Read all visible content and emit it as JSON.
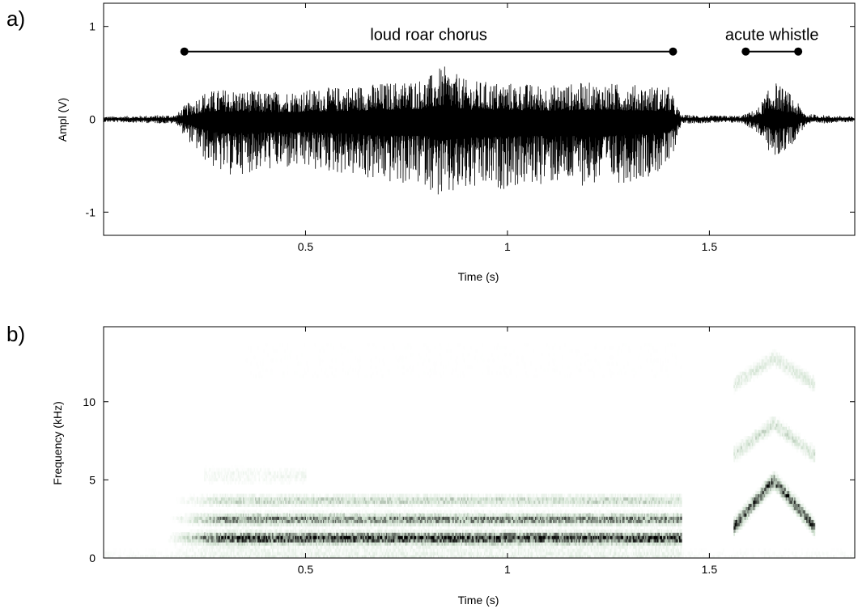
{
  "chart_data": [
    {
      "panel_label": "a)",
      "type": "line",
      "xlabel": "Time (s)",
      "ylabel": "Ampl (V)",
      "xlim": [
        0,
        1.86
      ],
      "ylim": [
        -1.25,
        1.25
      ],
      "xticks": [
        0.5,
        1,
        1.5
      ],
      "xtick_labels": [
        "0.5",
        "1",
        "1.5"
      ],
      "yticks": [
        -1,
        0,
        1
      ],
      "ytick_labels": [
        "-1",
        "0",
        "1"
      ],
      "grid": false,
      "envelope": {
        "time": [
          0,
          0.1,
          0.18,
          0.2,
          0.25,
          0.3,
          0.4,
          0.5,
          0.6,
          0.7,
          0.8,
          0.84,
          0.9,
          1.0,
          1.1,
          1.2,
          1.3,
          1.4,
          1.43,
          1.5,
          1.58,
          1.62,
          1.66,
          1.7,
          1.74,
          1.8,
          1.86
        ],
        "max": [
          0.03,
          0.04,
          0.05,
          0.15,
          0.3,
          0.33,
          0.3,
          0.32,
          0.36,
          0.4,
          0.45,
          0.58,
          0.42,
          0.4,
          0.37,
          0.4,
          0.38,
          0.35,
          0.05,
          0.04,
          0.04,
          0.12,
          0.42,
          0.28,
          0.06,
          0.04,
          0.03
        ],
        "min": [
          -0.03,
          -0.04,
          -0.05,
          -0.18,
          -0.45,
          -0.62,
          -0.55,
          -0.55,
          -0.6,
          -0.7,
          -0.72,
          -0.9,
          -0.8,
          -0.75,
          -0.7,
          -0.72,
          -0.68,
          -0.55,
          -0.05,
          -0.04,
          -0.04,
          -0.15,
          -0.45,
          -0.3,
          -0.06,
          -0.04,
          -0.03
        ]
      },
      "annotations": [
        {
          "text": "loud roar chorus",
          "x_start": 0.2,
          "x_end": 1.41,
          "y": 0.73
        },
        {
          "text": "acute whistle",
          "x_start": 1.59,
          "x_end": 1.72,
          "y": 0.73
        }
      ],
      "line_color": "#000000"
    },
    {
      "panel_label": "b)",
      "type": "heatmap",
      "xlabel": "Time (s)",
      "ylabel": "Frequency (kHz)",
      "xlim": [
        0,
        1.86
      ],
      "ylim": [
        0,
        14.8
      ],
      "xticks": [
        0.5,
        1,
        1.5
      ],
      "xtick_labels": [
        "0.5",
        "1",
        "1.5"
      ],
      "yticks": [
        0,
        5,
        10
      ],
      "ytick_labels": [
        "0",
        "5",
        "10"
      ],
      "grid": false,
      "harmonic_bands_khz": [
        1.3,
        2.5,
        3.7
      ],
      "roar_time_range": [
        0.15,
        1.43
      ],
      "whistle_time_range": [
        1.6,
        1.72
      ],
      "colormap": [
        "#ffffff",
        "#d8e6d8",
        "#000000"
      ]
    }
  ]
}
